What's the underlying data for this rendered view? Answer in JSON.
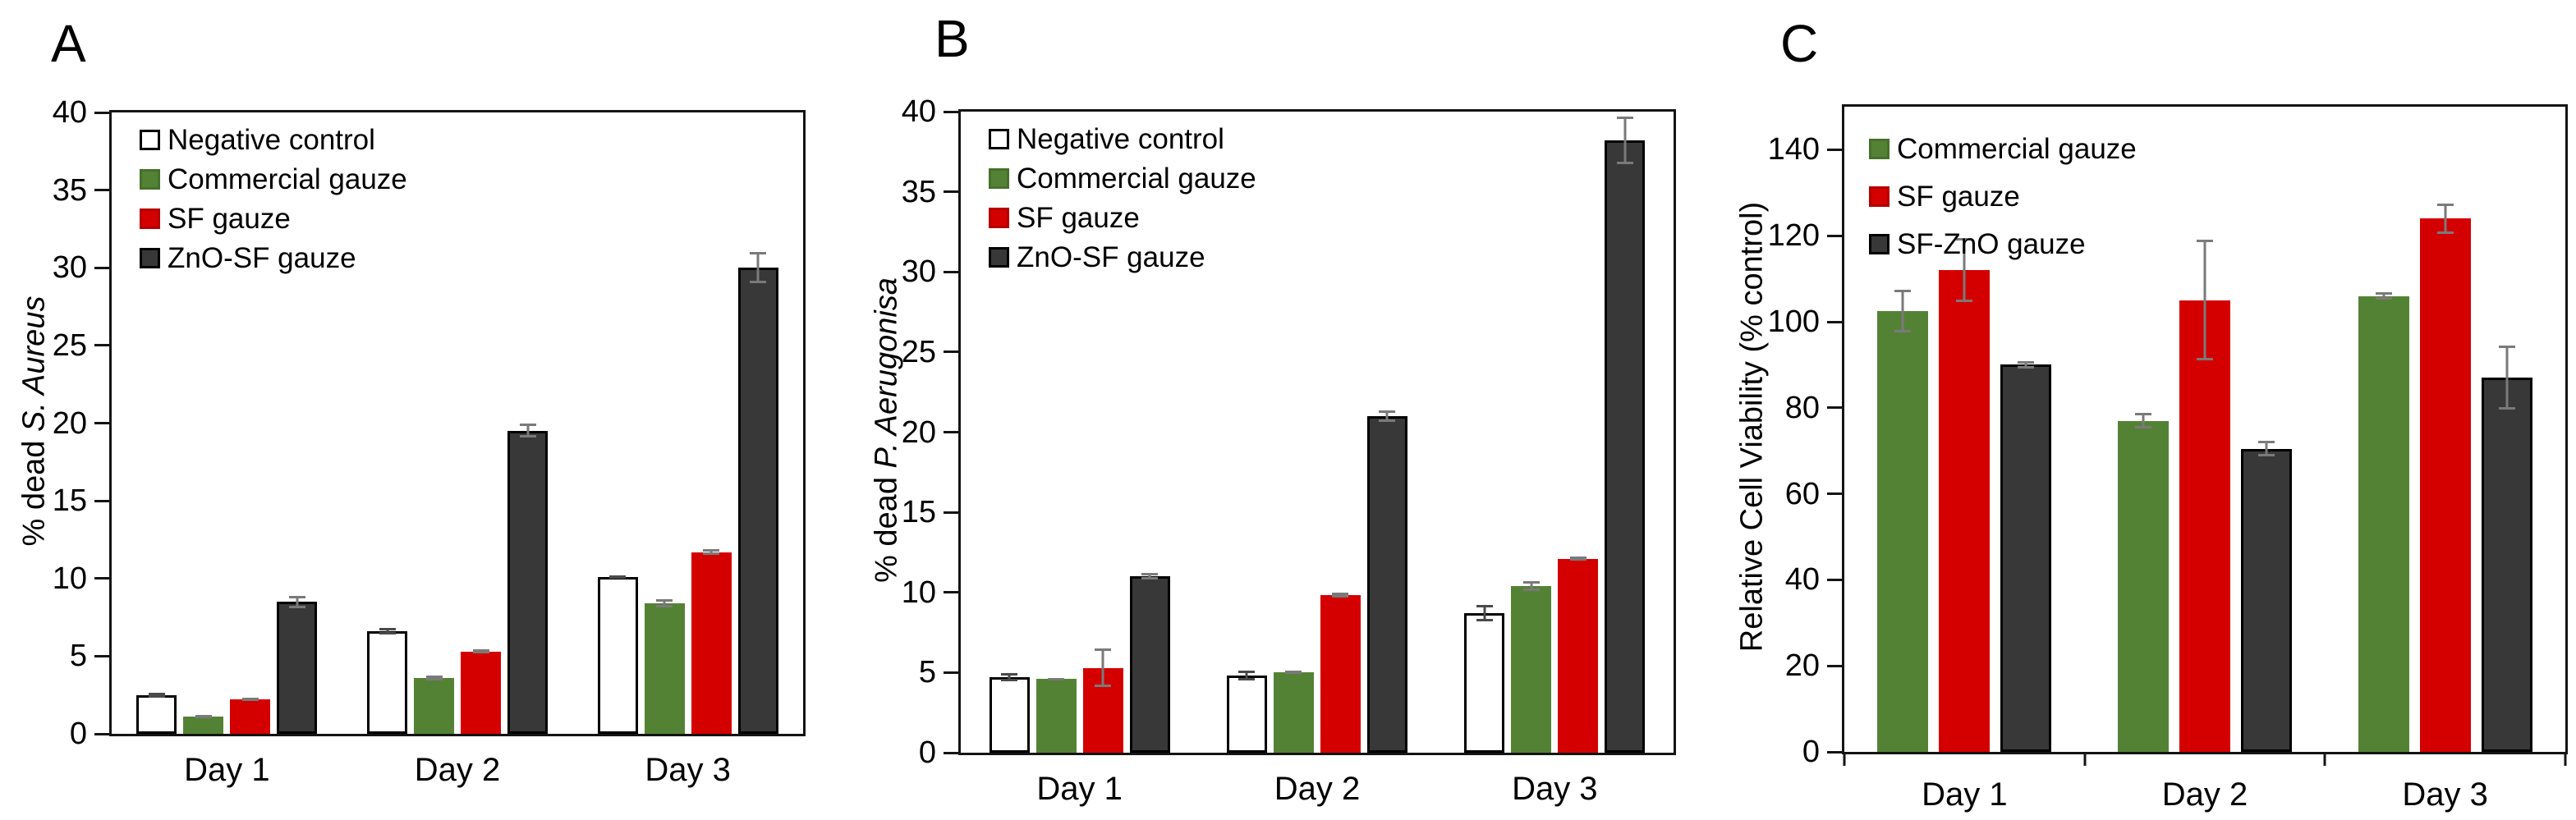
{
  "figure": {
    "background": "#ffffff",
    "error_bar_default_color": "#7a7a7a"
  },
  "chart_data": [
    {
      "type": "bar",
      "label": "A",
      "ylabel_prefix": "% dead ",
      "ylabel_italic": "S. Aureus",
      "ylim": [
        0,
        40
      ],
      "yticks": [
        0,
        5,
        10,
        15,
        20,
        25,
        30,
        35,
        40
      ],
      "categories": [
        "Day 1",
        "Day 2",
        "Day 3"
      ],
      "legend_position": "top-left-inside",
      "grid": false,
      "x_boundary_ticks": false,
      "series": [
        {
          "name": "Negative control",
          "fill": "#ffffff",
          "border": "#000000",
          "error_color": "#4a4a4a",
          "values": [
            2.5,
            6.6,
            10.1
          ],
          "errors": [
            0.15,
            0.2,
            0.12
          ]
        },
        {
          "name": "Commercial gauze",
          "fill": "#548235",
          "border": "#47702c",
          "error_color": "#7a7a7a",
          "values": [
            1.1,
            3.6,
            8.4
          ],
          "errors": [
            0.1,
            0.15,
            0.25
          ]
        },
        {
          "name": "SF gauze",
          "fill": "#d40000",
          "border": "#b50000",
          "error_color": "#7a7a7a",
          "values": [
            2.2,
            5.3,
            11.7
          ],
          "errors": [
            0.1,
            0.12,
            0.2
          ]
        },
        {
          "name": "ZnO-SF gauze",
          "fill": "#383838",
          "border": "#000000",
          "error_color": "#7a7a7a",
          "values": [
            8.5,
            19.5,
            30.0
          ],
          "errors": [
            0.4,
            0.45,
            1.0
          ]
        }
      ]
    },
    {
      "type": "bar",
      "label": "B",
      "ylabel_prefix": "% dead ",
      "ylabel_italic": "P. Aerugonisa",
      "ylim": [
        0,
        40
      ],
      "yticks": [
        0,
        5,
        10,
        15,
        20,
        25,
        30,
        35,
        40
      ],
      "categories": [
        "Day 1",
        "Day 2",
        "Day 3"
      ],
      "legend_position": "top-left-inside",
      "grid": false,
      "x_boundary_ticks": false,
      "series": [
        {
          "name": "Negative control",
          "fill": "#ffffff",
          "border": "#000000",
          "error_color": "#4a4a4a",
          "values": [
            4.7,
            4.8,
            8.7
          ],
          "errors": [
            0.25,
            0.3,
            0.5
          ]
        },
        {
          "name": "Commercial gauze",
          "fill": "#548235",
          "border": "#47702c",
          "error_color": "#7a7a7a",
          "values": [
            4.6,
            5.0,
            10.4
          ],
          "errors": [
            0.08,
            0.1,
            0.3
          ]
        },
        {
          "name": "SF gauze",
          "fill": "#d40000",
          "border": "#b50000",
          "error_color": "#7a7a7a",
          "values": [
            5.3,
            9.85,
            12.1
          ],
          "errors": [
            1.2,
            0.15,
            0.12
          ]
        },
        {
          "name": "ZnO-SF gauze",
          "fill": "#383838",
          "border": "#000000",
          "error_color": "#7a7a7a",
          "values": [
            11.0,
            21.0,
            38.2
          ],
          "errors": [
            0.2,
            0.35,
            1.5
          ]
        }
      ]
    },
    {
      "type": "bar",
      "label": "C",
      "ylabel_prefix": "Relative Cell Viability (% control)",
      "ylabel_italic": "",
      "ylim": [
        0,
        150
      ],
      "yticks": [
        0,
        20,
        40,
        60,
        80,
        100,
        120,
        140
      ],
      "categories": [
        "Day 1",
        "Day 2",
        "Day 3"
      ],
      "legend_position": "top-left-inside",
      "grid": false,
      "x_boundary_ticks": true,
      "series": [
        {
          "name": "Commercial gauze",
          "fill": "#548235",
          "border": "#47702c",
          "error_color": "#7a7a7a",
          "values": [
            102.5,
            77.0,
            106.0
          ],
          "errors": [
            5.0,
            1.8,
            0.8
          ]
        },
        {
          "name": "SF gauze",
          "fill": "#d40000",
          "border": "#b50000",
          "error_color": "#7a7a7a",
          "values": [
            112.0,
            105.0,
            124.0
          ],
          "errors": [
            7.5,
            14.0,
            3.5
          ]
        },
        {
          "name": "SF-ZnO gauze",
          "fill": "#383838",
          "border": "#000000",
          "error_color": "#7a7a7a",
          "values": [
            90.0,
            70.5,
            87.0
          ],
          "errors": [
            0.8,
            1.8,
            7.5
          ]
        }
      ]
    }
  ]
}
